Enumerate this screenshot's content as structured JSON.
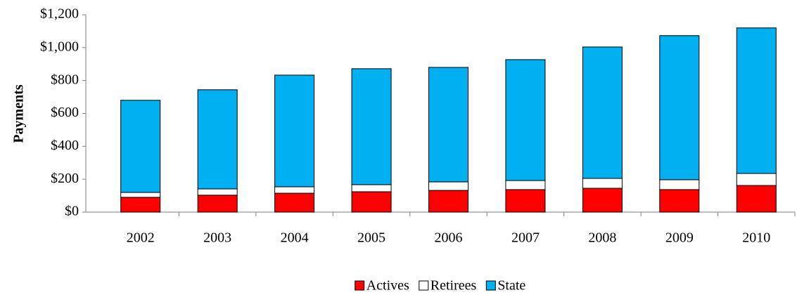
{
  "chart_data": {
    "type": "stacked-bar",
    "y_label": "Payments",
    "categories": [
      "2002",
      "2003",
      "2004",
      "2005",
      "2006",
      "2007",
      "2008",
      "2009",
      "2010"
    ],
    "series": [
      {
        "name": "Actives",
        "color": "#ff0000",
        "values": [
          90,
          103,
          115,
          124,
          132,
          137,
          145,
          137,
          162
        ]
      },
      {
        "name": "Retirees",
        "color": "#ffffff",
        "values": [
          30,
          38,
          39,
          43,
          52,
          55,
          60,
          60,
          73
        ]
      },
      {
        "name": "State",
        "color": "#00b0f0",
        "values": [
          560,
          603,
          679,
          705,
          696,
          735,
          799,
          876,
          885
        ]
      }
    ],
    "ylim": [
      0,
      1200
    ],
    "yticks": [
      {
        "value": 0,
        "label": "$0"
      },
      {
        "value": 200,
        "label": "$200"
      },
      {
        "value": 400,
        "label": "$400"
      },
      {
        "value": 600,
        "label": "$600"
      },
      {
        "value": 800,
        "label": "$800"
      },
      {
        "value": 1000,
        "label": "$1,000"
      },
      {
        "value": 1200,
        "label": "$1,200"
      }
    ],
    "legend": "bottom"
  }
}
